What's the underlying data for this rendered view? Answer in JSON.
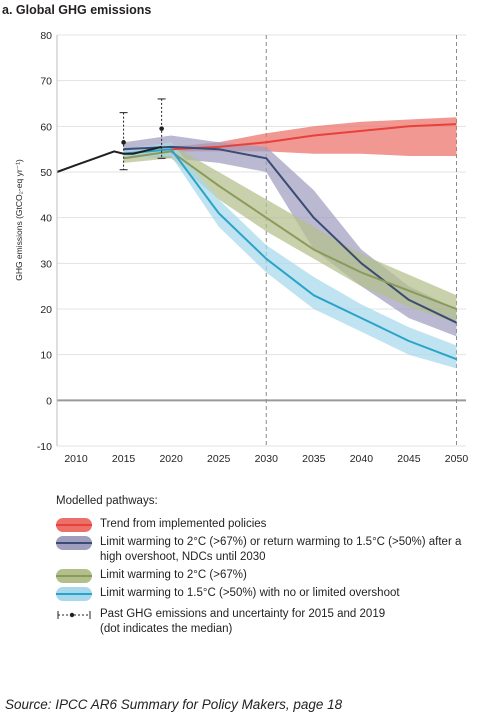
{
  "chart_data": {
    "type": "area",
    "title": "a. Global GHG emissions",
    "ylabel": "GHG emissions (GtCO₂-eq yr⁻¹)",
    "xlim": [
      2008,
      2051
    ],
    "ylim": [
      -10,
      80
    ],
    "xticks": [
      2010,
      2015,
      2020,
      2025,
      2030,
      2035,
      2040,
      2045,
      2050
    ],
    "yticks": [
      -10,
      0,
      10,
      20,
      30,
      40,
      50,
      60,
      70,
      80
    ],
    "vlines": [
      2030,
      2050
    ],
    "historical": {
      "x": [
        2008,
        2010,
        2012,
        2014,
        2015,
        2016,
        2018,
        2019
      ],
      "y": [
        50,
        51.5,
        53,
        54.5,
        54,
        54,
        55,
        55.5
      ]
    },
    "past_uncertainty": [
      {
        "x": 2015,
        "median": 56.5,
        "low": 50.5,
        "high": 63
      },
      {
        "x": 2019,
        "median": 59.5,
        "low": 53,
        "high": 66
      }
    ],
    "series": [
      {
        "name": "Trend from implemented policies",
        "color": "#e8413b",
        "band_color": "#ec7069",
        "x": [
          2020,
          2025,
          2030,
          2035,
          2040,
          2045,
          2050
        ],
        "median": [
          55,
          55.5,
          56.5,
          58,
          59,
          60,
          60.5
        ],
        "upper": [
          55.5,
          56.5,
          58.5,
          60,
          61,
          61.5,
          62
        ],
        "lower": [
          54.5,
          54.5,
          54.5,
          54,
          54,
          53.5,
          53.5
        ]
      },
      {
        "name": "Limit warming to 2°C (>67%) or return warming to 1.5°C (>50%) after a high overshoot, NDCs until 2030",
        "color": "#3a4c73",
        "band_color": "#9f9ebf",
        "x": [
          2015,
          2020,
          2025,
          2030,
          2035,
          2040,
          2045,
          2050
        ],
        "median": [
          55,
          55.5,
          55,
          53,
          40,
          30,
          22,
          17
        ],
        "upper": [
          56.5,
          58,
          56.5,
          55.5,
          46,
          33,
          25,
          20
        ],
        "lower": [
          53.5,
          53,
          52,
          50,
          33,
          25,
          18,
          14
        ]
      },
      {
        "name": "Limit warming to 2°C (>67%)",
        "color": "#8a9a5b",
        "band_color": "#b3bf8a",
        "x": [
          2015,
          2020,
          2025,
          2030,
          2035,
          2040,
          2045,
          2050
        ],
        "median": [
          53,
          54.5,
          47,
          40,
          33,
          28,
          24,
          20
        ],
        "upper": [
          54,
          56,
          50,
          44,
          38,
          32,
          27.5,
          23
        ],
        "lower": [
          52,
          53,
          44,
          37,
          31,
          25,
          20.5,
          17
        ]
      },
      {
        "name": "Limit warming to 1.5°C (>50%) with no or limited overshoot",
        "color": "#2ba3c8",
        "band_color": "#a8d8eb",
        "x": [
          2015,
          2020,
          2025,
          2030,
          2035,
          2040,
          2045,
          2050
        ],
        "median": [
          54,
          55,
          41,
          31,
          23,
          18,
          13,
          9
        ],
        "upper": [
          55,
          56.5,
          44,
          34,
          27,
          21,
          16,
          12
        ],
        "lower": [
          53,
          53.5,
          38,
          28,
          20,
          15,
          10,
          7
        ]
      }
    ],
    "legend": {
      "title": "Modelled pathways:",
      "placement": "bottom",
      "past_label": "Past GHG emissions and uncertainty for 2015 and 2019",
      "past_note": "(dot indicates the median)"
    }
  },
  "source_note": "Source:  IPCC AR6 Summary for Policy Makers, page 18"
}
